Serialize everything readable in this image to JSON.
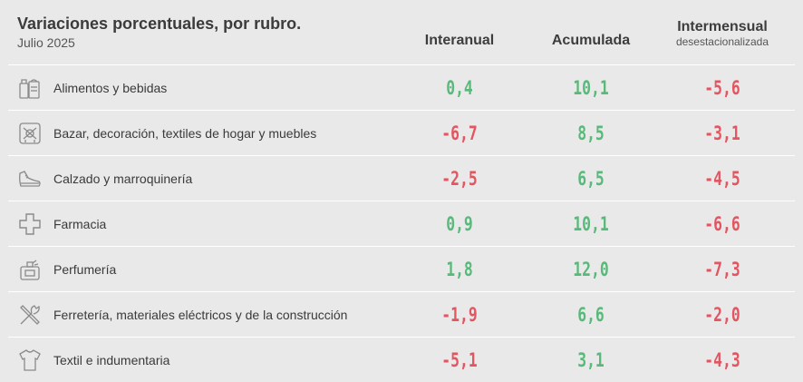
{
  "title": "Variaciones porcentuales, por rubro.",
  "subtitle": "Julio 2025",
  "columns": {
    "interanual": "Interanual",
    "acumulada": "Acumulada",
    "intermensual": "Intermensual",
    "intermensual_sub": "desestacionalizada"
  },
  "colors": {
    "positive": "#58b97a",
    "negative": "#e25561",
    "background": "#e9e9e9"
  },
  "chart_data": {
    "type": "table",
    "title": "Variaciones porcentuales, por rubro.",
    "subtitle": "Julio 2025",
    "columns": [
      "Interanual",
      "Acumulada",
      "Intermensual desestacionalizada"
    ],
    "rows": [
      {
        "icon": "food-bag-icon",
        "label": "Alimentos y bebidas",
        "interanual": "0,4",
        "acumulada": "10,1",
        "intermensual": "-5,6"
      },
      {
        "icon": "home-decor-icon",
        "label": "Bazar, decoración, textiles de hogar y muebles",
        "interanual": "-6,7",
        "acumulada": "8,5",
        "intermensual": "-3,1"
      },
      {
        "icon": "shoe-icon",
        "label": "Calzado y marroquinería",
        "interanual": "-2,5",
        "acumulada": "6,5",
        "intermensual": "-4,5"
      },
      {
        "icon": "pharmacy-cross-icon",
        "label": "Farmacia",
        "interanual": "0,9",
        "acumulada": "10,1",
        "intermensual": "-6,6"
      },
      {
        "icon": "perfume-icon",
        "label": "Perfumería",
        "interanual": "1,8",
        "acumulada": "12,0",
        "intermensual": "-7,3"
      },
      {
        "icon": "tools-icon",
        "label": "Ferretería, materiales eléctricos y de la construcción",
        "interanual": "-1,9",
        "acumulada": "6,6",
        "intermensual": "-2,0"
      },
      {
        "icon": "shirt-icon",
        "label": "Textil e indumentaria",
        "interanual": "-5,1",
        "acumulada": "3,1",
        "intermensual": "-4,3"
      }
    ]
  }
}
